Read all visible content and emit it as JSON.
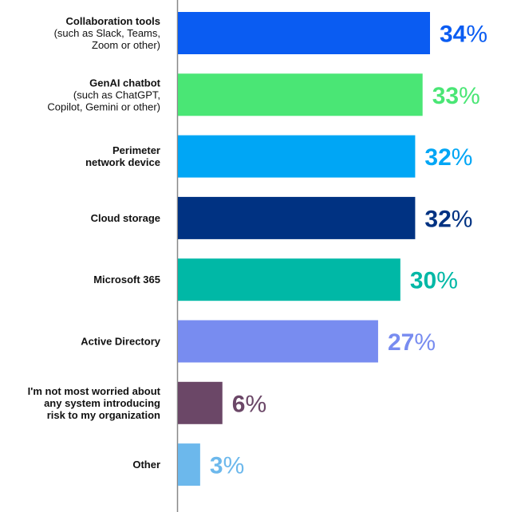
{
  "chart_data": {
    "type": "bar",
    "orientation": "horizontal",
    "xlim": [
      0,
      34
    ],
    "grid": false,
    "categories": [
      {
        "title": "Collaboration tools",
        "subtitle": [
          "(such as Slack, Teams,",
          "Zoom or other)"
        ]
      },
      {
        "title": "GenAI chatbot",
        "subtitle": [
          "(such as ChatGPT,",
          "Copilot, Gemini or other)"
        ]
      },
      {
        "title": [
          "Perimeter",
          "network device"
        ],
        "subtitle": []
      },
      {
        "title": "Cloud storage",
        "subtitle": []
      },
      {
        "title": "Microsoft 365",
        "subtitle": []
      },
      {
        "title": "Active Directory",
        "subtitle": []
      },
      {
        "title": [
          "I'm not most worried about",
          "any system introducing",
          "risk to my organization"
        ],
        "subtitle": []
      },
      {
        "title": "Other",
        "subtitle": []
      }
    ],
    "values": [
      34,
      33,
      32,
      32,
      30,
      27,
      6,
      3
    ],
    "value_labels": [
      "34",
      "33",
      "32",
      "32",
      "30",
      "27",
      "6",
      "3"
    ],
    "value_suffix": "%",
    "colors": [
      "#0a5cf2",
      "#4ae675",
      "#00a6f5",
      "#003282",
      "#00b8a6",
      "#788cf0",
      "#6b4767",
      "#6cb8ec"
    ]
  }
}
